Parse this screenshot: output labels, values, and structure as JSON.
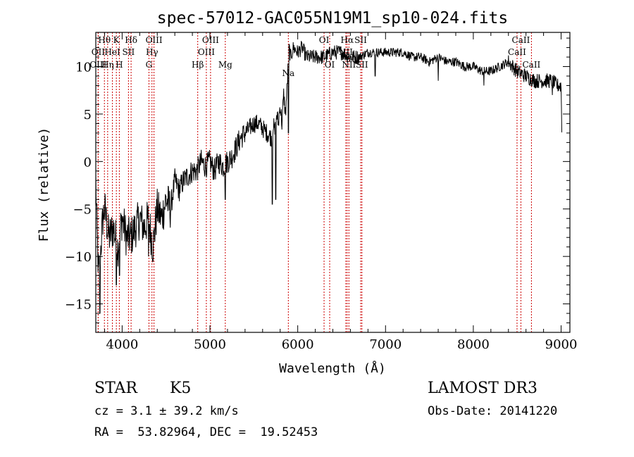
{
  "chart_data": {
    "type": "line",
    "title": "spec-57012-GAC055N19M1_sp10-024.fits",
    "xlabel": "Wavelength (Å)",
    "ylabel": "Flux (relative)",
    "xlim": [
      3700,
      9100
    ],
    "ylim": [
      -18,
      13.6
    ],
    "xticks": [
      4000,
      5000,
      6000,
      7000,
      8000,
      9000
    ],
    "xtick_labels": [
      "4000",
      "5000",
      "6000",
      "7000",
      "8000",
      "9000"
    ],
    "yticks": [
      -15,
      -10,
      -5,
      0,
      5,
      10
    ],
    "ytick_labels": [
      "−15",
      "−10",
      "−5",
      "0",
      "5",
      "10"
    ],
    "grid": false,
    "line_color": "#000000",
    "marker_color": "#cc0000",
    "series": [
      {
        "name": "spectrum",
        "anchors_x": [
          3700,
          3710,
          3730,
          3750,
          3780,
          3800,
          3850,
          3900,
          3950,
          4000,
          4050,
          4100,
          4150,
          4200,
          4250,
          4300,
          4350,
          4400,
          4450,
          4500,
          4550,
          4600,
          4650,
          4700,
          4750,
          4800,
          4850,
          4900,
          4950,
          5000,
          5050,
          5100,
          5150,
          5200,
          5250,
          5300,
          5350,
          5400,
          5450,
          5500,
          5550,
          5600,
          5650,
          5700,
          5720,
          5740,
          5760,
          5780,
          5800,
          5820,
          5840,
          5860,
          5880,
          5900,
          5920,
          5950,
          6000,
          6050,
          6100,
          6200,
          6300,
          6400,
          6500,
          6600,
          6700,
          6800,
          6900,
          7000,
          7100,
          7200,
          7300,
          7400,
          7500,
          7600,
          7700,
          7800,
          7900,
          8000,
          8100,
          8200,
          8300,
          8400,
          8500,
          8600,
          8700,
          8800,
          8900,
          8950,
          9000,
          9010
        ],
        "anchors_y": [
          -2,
          -6,
          -12,
          -10,
          -6,
          -5,
          -8,
          -7,
          -9,
          -6,
          -8,
          -8,
          -7,
          -6,
          -7,
          -6,
          -9,
          -5,
          -6,
          -4,
          -5,
          -2,
          -3,
          -2,
          -1.5,
          -1,
          -1,
          0,
          -0.5,
          0,
          -1,
          0,
          -0.5,
          0,
          0.5,
          1.5,
          2.5,
          3,
          3.5,
          4,
          4,
          3.5,
          3,
          2.5,
          4,
          3,
          5,
          4,
          6,
          4,
          7,
          5,
          8,
          12,
          11,
          12,
          11.5,
          12,
          11,
          11,
          11,
          11.5,
          11.5,
          11,
          11,
          11.5,
          11.5,
          11.5,
          11.5,
          11.5,
          11,
          11,
          10.5,
          11,
          10.5,
          10.5,
          10,
          10,
          9.5,
          9.5,
          10,
          10.5,
          9.5,
          9,
          8.5,
          8.5,
          8.5,
          8,
          8,
          2
        ],
        "noise_amplitude_ranges": [
          [
            3700,
            4560,
            2.2
          ],
          [
            4560,
            5400,
            1.3
          ],
          [
            5400,
            5900,
            1.0
          ],
          [
            5900,
            6700,
            0.8
          ],
          [
            6700,
            8400,
            0.5
          ],
          [
            8400,
            9100,
            0.8
          ]
        ],
        "absorption_dips": [
          [
            3746,
            -16
          ],
          [
            3935,
            -13
          ],
          [
            3970,
            -12
          ],
          [
            4300,
            -10
          ],
          [
            5173,
            -4
          ],
          [
            5710,
            -4.5
          ],
          [
            5750,
            -4
          ],
          [
            5893,
            3
          ],
          [
            6883,
            9
          ],
          [
            7600,
            8.5
          ],
          [
            8120,
            8
          ],
          [
            8662,
            8
          ],
          [
            8900,
            7
          ]
        ]
      }
    ],
    "line_markers": [
      {
        "label": "Hθ",
        "x": 3798,
        "row": 0
      },
      {
        "label": "OII",
        "x": 3727,
        "row": 1
      },
      {
        "label": "OIII",
        "x": 3727,
        "row": 2
      },
      {
        "label": "HeI",
        "x": 3889,
        "row": 1
      },
      {
        "label": "Hη",
        "x": 3835,
        "row": 2
      },
      {
        "label": "K",
        "x": 3934,
        "row": 0
      },
      {
        "label": "SII",
        "x": 4072,
        "row": 1
      },
      {
        "label": "H",
        "x": 3968,
        "row": 2
      },
      {
        "label": "Hδ",
        "x": 4102,
        "row": 0
      },
      {
        "label": "OIII",
        "x": 4363,
        "row": 0
      },
      {
        "label": "Hγ",
        "x": 4340,
        "row": 1
      },
      {
        "label": "G",
        "x": 4305,
        "row": 2
      },
      {
        "label": "OIII",
        "x": 5007,
        "row": 0
      },
      {
        "label": "OIII",
        "x": 4959,
        "row": 1
      },
      {
        "label": "Hβ",
        "x": 4861,
        "row": 2
      },
      {
        "label": "Mg",
        "x": 5175,
        "row": 2
      },
      {
        "label": "Na",
        "x": 5893,
        "row": 3
      },
      {
        "label": "OI",
        "x": 6300,
        "row": 0
      },
      {
        "label": "OI",
        "x": 6364,
        "row": 2
      },
      {
        "label": "Hα",
        "x": 6563,
        "row": 0
      },
      {
        "label": "NII",
        "x": 6548,
        "row": 1
      },
      {
        "label": "NII",
        "x": 6583,
        "row": 2
      },
      {
        "label": "SII",
        "x": 6717,
        "row": 0
      },
      {
        "label": "SII",
        "x": 6731,
        "row": 2
      },
      {
        "label": "CaII",
        "x": 8542,
        "row": 0
      },
      {
        "label": "CaII",
        "x": 8498,
        "row": 1
      },
      {
        "label": "CaII",
        "x": 8662,
        "row": 2
      }
    ]
  },
  "info": {
    "class_label": "STAR",
    "subclass": "K5",
    "cz_text": "cz = 3.1 ± 39.2 km/s",
    "ra_dec_text": "RA =  53.82964, DEC =  19.52453",
    "survey": "LAMOST DR3",
    "obs_date_text": "Obs-Date: 20141220"
  }
}
